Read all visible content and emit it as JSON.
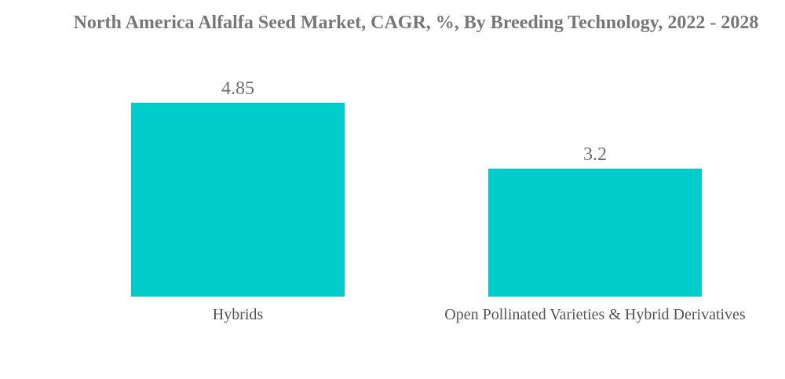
{
  "chart_data": {
    "type": "bar",
    "title": "North America Alfalfa Seed Market, CAGR, %, By Breeding Technology, 2022 - 2028",
    "categories": [
      "Hybrids",
      "Open Pollinated Varieties & Hybrid Derivatives"
    ],
    "values": [
      4.85,
      3.2
    ],
    "value_labels": [
      "4.85",
      "3.2"
    ],
    "xlabel": "",
    "ylabel": "",
    "ylim": [
      0,
      4.85
    ],
    "grid": false,
    "legend": "none",
    "colors": {
      "bar": "#00cccc",
      "title": "#777777",
      "value_label": "#6f6f6f",
      "category_label": "#555555"
    }
  }
}
